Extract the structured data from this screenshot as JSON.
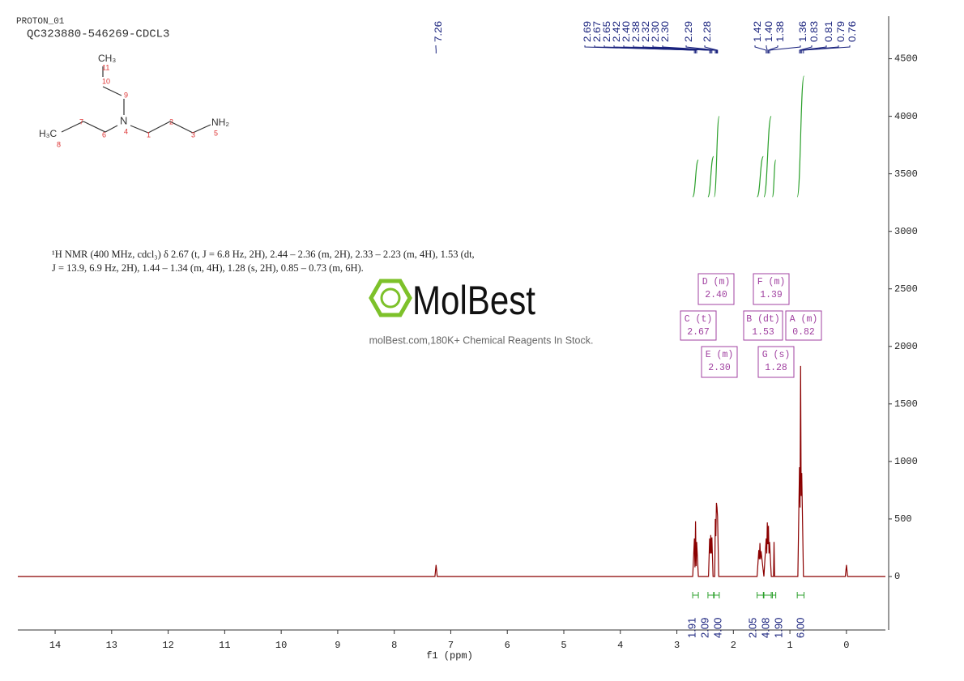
{
  "header": {
    "experiment": "PROTON_01",
    "sample": "QC323880-546269-CDCL3"
  },
  "structure": {
    "labels": [
      "CH₃",
      "11",
      "10",
      "9",
      "N",
      "4",
      "1",
      "2",
      "3",
      "NH₂",
      "5",
      "H₃C",
      "8",
      "7",
      "6"
    ]
  },
  "description": [
    "¹H NMR (400 MHz, cdcl₃) δ 2.67 (t, J = 6.8 Hz, 2H), 2.44 – 2.36 (m, 2H), 2.33 – 2.23 (m, 4H), 1.53 (dt,",
    "J = 13.9, 6.9 Hz, 2H), 1.44 – 1.34 (m, 4H), 1.28 (s, 2H), 0.85 – 0.73 (m, 6H)."
  ],
  "watermark": {
    "brand": "MolBest",
    "tagline": "molBest.com,180K+ Chemical Reagents In Stock."
  },
  "chart_data": {
    "type": "line",
    "xlabel": "f1 (ppm)",
    "xlim": [
      14.66,
      -0.69
    ],
    "xticks": [
      14,
      13,
      12,
      11,
      10,
      9,
      8,
      7,
      6,
      5,
      4,
      3,
      2,
      1,
      0
    ],
    "ylim": [
      -465,
      4870
    ],
    "yticks": [
      0,
      500,
      1000,
      1500,
      2000,
      2500,
      3000,
      3500,
      4000,
      4500
    ],
    "color": "#8b0000",
    "x": [
      14.66,
      7.28,
      7.26,
      7.24,
      2.72,
      2.69,
      2.68,
      2.67,
      2.66,
      2.65,
      2.62,
      2.44,
      2.42,
      2.41,
      2.4,
      2.39,
      2.38,
      2.36,
      2.33,
      2.32,
      2.31,
      2.3,
      2.29,
      2.28,
      2.26,
      1.58,
      1.55,
      1.54,
      1.53,
      1.52,
      1.51,
      1.46,
      1.42,
      1.41,
      1.4,
      1.39,
      1.38,
      1.37,
      1.36,
      1.33,
      1.29,
      1.28,
      1.27,
      0.86,
      0.83,
      0.82,
      0.81,
      0.8,
      0.79,
      0.76,
      0.02,
      0.0,
      -0.02,
      -0.69
    ],
    "values": [
      0,
      0,
      100,
      0,
      0,
      330,
      80,
      480,
      90,
      300,
      0,
      0,
      330,
      200,
      360,
      200,
      340,
      0,
      0,
      500,
      350,
      640,
      600,
      520,
      0,
      0,
      230,
      150,
      290,
      150,
      220,
      0,
      330,
      200,
      470,
      280,
      440,
      200,
      300,
      0,
      0,
      300,
      0,
      0,
      950,
      600,
      1830,
      700,
      900,
      0,
      0,
      100,
      0,
      0
    ],
    "peak_labels": [
      "7.26",
      "2.69",
      "2.67",
      "2.65",
      "2.42",
      "2.40",
      "2.38",
      "2.32",
      "2.30",
      "2.30",
      "2.29",
      "2.28",
      "1.42",
      "1.40",
      "1.38",
      "1.36",
      "0.83",
      "0.81",
      "0.79",
      "0.76"
    ],
    "integral_color": "#2ca02c",
    "integrals": [
      {
        "label": "1.91",
        "from": 2.72,
        "to": 2.62,
        "curve": [
          3300,
          3620
        ]
      },
      {
        "label": "2.09",
        "from": 2.45,
        "to": 2.35,
        "curve": [
          3300,
          3650
        ]
      },
      {
        "label": "4.00",
        "from": 2.34,
        "to": 2.25,
        "curve": [
          3300,
          4000
        ]
      },
      {
        "label": "2.05",
        "from": 1.58,
        "to": 1.47,
        "curve": [
          3300,
          3650
        ]
      },
      {
        "label": "4.08",
        "from": 1.46,
        "to": 1.33,
        "curve": [
          3300,
          4000
        ]
      },
      {
        "label": "1.90",
        "from": 1.31,
        "to": 1.25,
        "curve": [
          3300,
          3620
        ]
      },
      {
        "label": "6.00",
        "from": 0.87,
        "to": 0.75,
        "curve": [
          3300,
          4350
        ]
      }
    ],
    "multiplets": [
      {
        "name": "A (m)",
        "shift": "0.82"
      },
      {
        "name": "B (dt)",
        "shift": "1.53"
      },
      {
        "name": "C (t)",
        "shift": "2.67"
      },
      {
        "name": "D (m)",
        "shift": "2.40"
      },
      {
        "name": "E (m)",
        "shift": "2.30"
      },
      {
        "name": "F (m)",
        "shift": "1.39"
      },
      {
        "name": "G (s)",
        "shift": "1.28"
      }
    ]
  }
}
